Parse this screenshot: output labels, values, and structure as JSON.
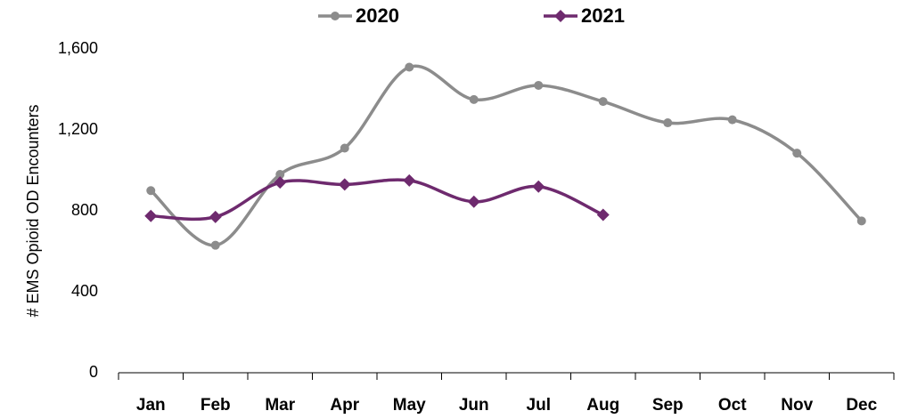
{
  "chart_data": {
    "type": "line",
    "y_label": "# EMS Opioid OD Encounters",
    "categories": [
      "Jan",
      "Feb",
      "Mar",
      "Apr",
      "May",
      "Jun",
      "Jul",
      "Aug",
      "Sep",
      "Oct",
      "Nov",
      "Dec"
    ],
    "series": [
      {
        "name": "2020",
        "color": "#8c8c8c",
        "marker": "circle",
        "values": [
          900,
          630,
          980,
          1110,
          1510,
          1350,
          1420,
          1340,
          1235,
          1250,
          1085,
          750
        ]
      },
      {
        "name": "2021",
        "color": "#6e2a6e",
        "marker": "diamond",
        "values": [
          775,
          770,
          940,
          930,
          950,
          845,
          920,
          780,
          null,
          null,
          null,
          null
        ]
      }
    ],
    "ylim": [
      0,
      1600
    ],
    "yticks": [
      0,
      400,
      800,
      {
        "value": 1200,
        "label": "1,200"
      },
      {
        "value": 1600,
        "label": "1,600"
      }
    ],
    "grid": false,
    "smooth": true,
    "legend": "top"
  }
}
